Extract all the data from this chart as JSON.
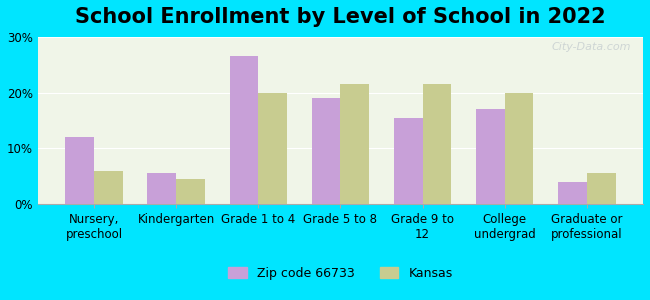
{
  "title": "School Enrollment by Level of School in 2022",
  "categories": [
    "Nursery,\npreschool",
    "Kindergarten",
    "Grade 1 to 4",
    "Grade 5 to 8",
    "Grade 9 to\n12",
    "College\nundergrad",
    "Graduate or\nprofessional"
  ],
  "zip_values": [
    12,
    5.5,
    26.5,
    19,
    15.5,
    17,
    4
  ],
  "kansas_values": [
    6,
    4.5,
    20,
    21.5,
    21.5,
    20,
    5.5
  ],
  "zip_color": "#c8a0d8",
  "kansas_color": "#c8cc90",
  "background_color": "#00e5ff",
  "plot_bg_color_top": "#f0f5e8",
  "plot_bg_color_bottom": "#ffffff",
  "ylim": [
    0,
    30
  ],
  "yticks": [
    0,
    10,
    20,
    30
  ],
  "ytick_labels": [
    "0%",
    "10%",
    "20%",
    "30%"
  ],
  "zip_label": "Zip code 66733",
  "kansas_label": "Kansas",
  "title_fontsize": 15,
  "tick_fontsize": 8.5,
  "legend_fontsize": 9,
  "watermark": "City-Data.com"
}
